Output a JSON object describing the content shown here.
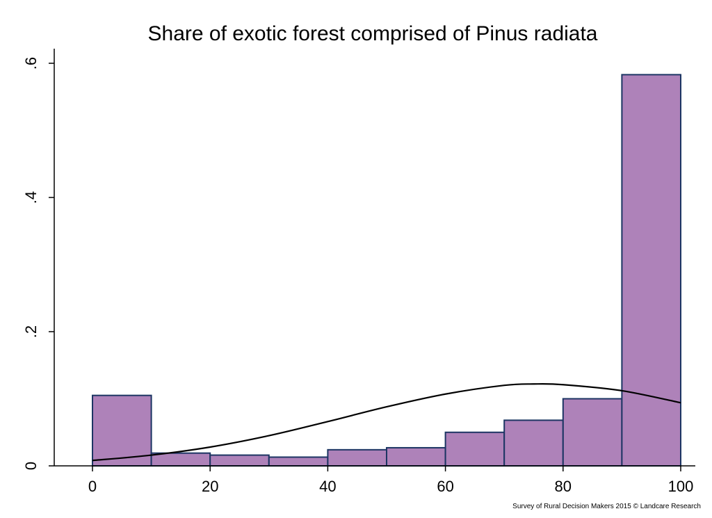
{
  "chart_data": {
    "type": "bar",
    "title": "Share of exotic forest comprised of Pinus radiata",
    "xlabel": "",
    "ylabel": "",
    "bin_width": 10,
    "bins": [
      {
        "start": 0,
        "end": 10,
        "value": 0.105
      },
      {
        "start": 10,
        "end": 20,
        "value": 0.019
      },
      {
        "start": 20,
        "end": 30,
        "value": 0.016
      },
      {
        "start": 30,
        "end": 40,
        "value": 0.013
      },
      {
        "start": 40,
        "end": 50,
        "value": 0.024
      },
      {
        "start": 50,
        "end": 60,
        "value": 0.027
      },
      {
        "start": 60,
        "end": 70,
        "value": 0.05
      },
      {
        "start": 70,
        "end": 80,
        "value": 0.068
      },
      {
        "start": 80,
        "end": 90,
        "value": 0.1
      },
      {
        "start": 90,
        "end": 100,
        "value": 0.583
      }
    ],
    "density_curve": {
      "x": [
        0,
        10,
        20,
        30,
        40,
        50,
        60,
        70,
        75,
        80,
        90,
        100
      ],
      "y": [
        0.008,
        0.016,
        0.028,
        0.045,
        0.066,
        0.088,
        0.107,
        0.12,
        0.122,
        0.121,
        0.112,
        0.094
      ]
    },
    "xlim": [
      -5,
      100
    ],
    "ylim": [
      0,
      0.6
    ],
    "x_ticks": [
      0,
      20,
      40,
      60,
      80,
      100
    ],
    "x_tick_labels": [
      "0",
      "20",
      "40",
      "60",
      "80",
      "100"
    ],
    "y_ticks": [
      0,
      0.2,
      0.4,
      0.6
    ],
    "y_tick_labels": [
      "0",
      ".2",
      ".4",
      ".6"
    ],
    "grid": false,
    "legend": "none",
    "colors": {
      "bar_fill": "#ae82b9",
      "bar_outline": "#1c3563",
      "curve": "#000000"
    }
  },
  "source_note": "Survey of Rural Decision Makers 2015 © Landcare Research"
}
